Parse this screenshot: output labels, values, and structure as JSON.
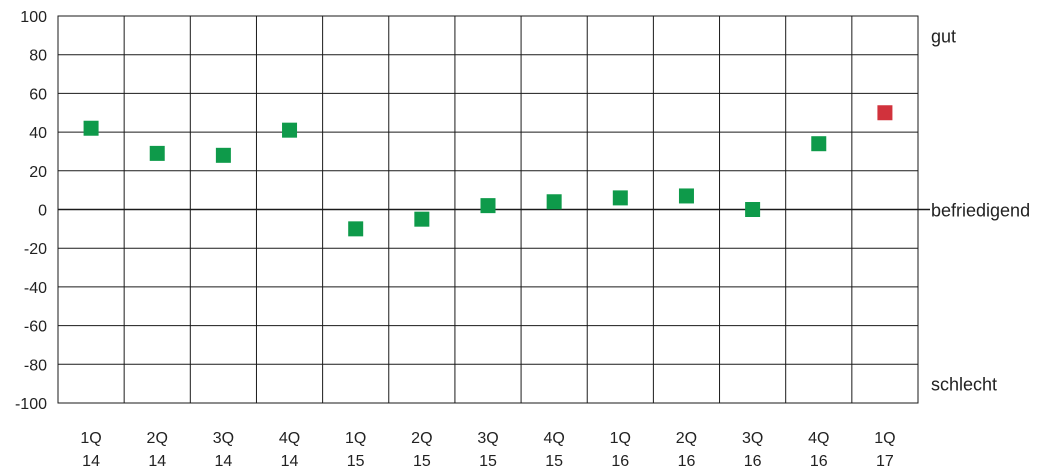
{
  "chart_data": {
    "type": "scatter",
    "ylim": [
      -100,
      100
    ],
    "yticks": [
      100,
      80,
      60,
      40,
      20,
      0,
      -20,
      -40,
      -60,
      -80,
      -100
    ],
    "ytick_labels": [
      "100",
      "80",
      "60",
      "40",
      "20",
      "0",
      "-20",
      "-40",
      "-60",
      "-80",
      "-100"
    ],
    "categories": [
      [
        "1Q",
        "14"
      ],
      [
        "2Q",
        "14"
      ],
      [
        "3Q",
        "14"
      ],
      [
        "4Q",
        "14"
      ],
      [
        "1Q",
        "15"
      ],
      [
        "2Q",
        "15"
      ],
      [
        "3Q",
        "15"
      ],
      [
        "4Q",
        "15"
      ],
      [
        "1Q",
        "16"
      ],
      [
        "2Q",
        "16"
      ],
      [
        "3Q",
        "16"
      ],
      [
        "4Q",
        "16"
      ],
      [
        "1Q",
        "17"
      ]
    ],
    "values": [
      42,
      29,
      28,
      41,
      -10,
      -5,
      2,
      4,
      6,
      7,
      0,
      34,
      50
    ],
    "point_colors": [
      "#0e9a4a",
      "#0e9a4a",
      "#0e9a4a",
      "#0e9a4a",
      "#0e9a4a",
      "#0e9a4a",
      "#0e9a4a",
      "#0e9a4a",
      "#0e9a4a",
      "#0e9a4a",
      "#0e9a4a",
      "#0e9a4a",
      "#d1323c"
    ],
    "right_annotations": [
      {
        "text": "gut",
        "y": 90
      },
      {
        "text": "befriedigend",
        "y": 0
      },
      {
        "text": "schlecht",
        "y": -90
      }
    ],
    "grid": true
  }
}
